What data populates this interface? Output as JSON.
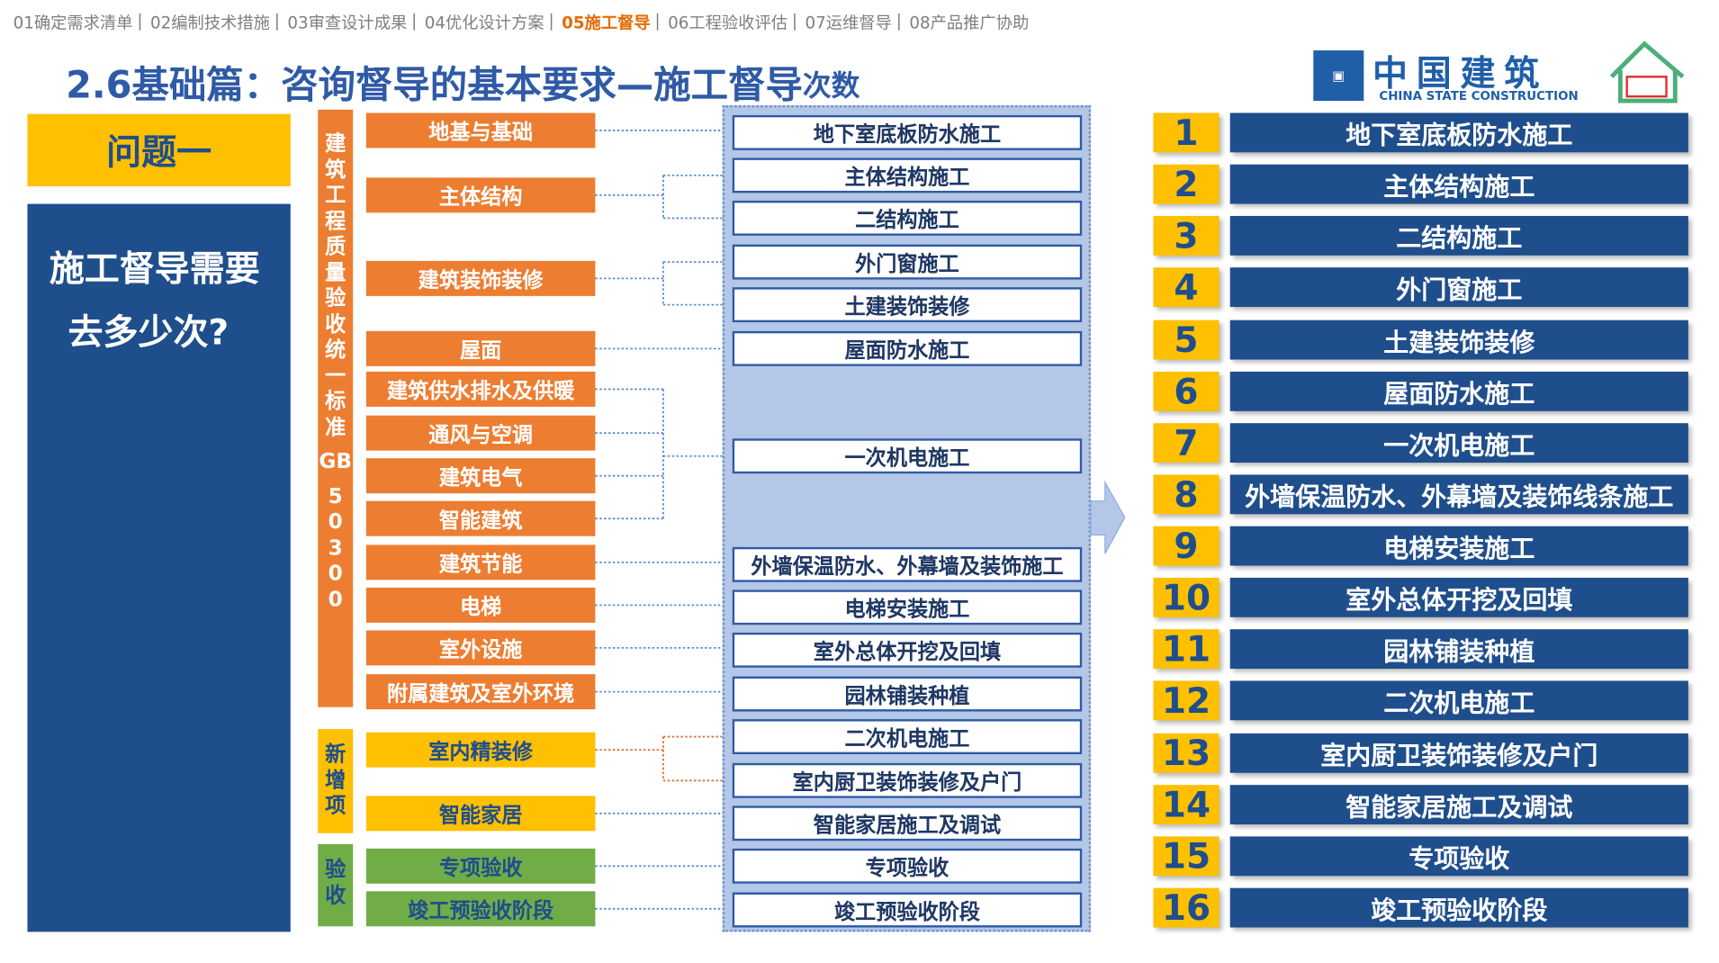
{
  "nav": {
    "items": [
      "01确定需求清单",
      "02编制技术措施",
      "03审查设计成果",
      "04优化设计方案",
      "05施工督导",
      "06工程验收评估",
      "07运维督导",
      "08产品推广协助"
    ],
    "active": 4
  },
  "title": {
    "main": "2.6基础篇：咨询督导的基本要求—施工督导",
    "suffix": "次数"
  },
  "logo": {
    "name": "中国建筑",
    "subtitle": "CHINA STATE CONSTRUCTION"
  },
  "question": {
    "label": "问题一",
    "lines": [
      "施工督导需要",
      "去多少次?"
    ]
  },
  "groups": [
    {
      "label": "建筑工程质量验收统一标准GB50300",
      "items": [
        "地基与基础",
        "主体结构",
        "建筑装饰装修",
        "屋面",
        "建筑供水排水及供暖",
        "通风与空调",
        "建筑电气",
        "智能建筑",
        "建筑节能",
        "电梯",
        "室外设施",
        "附属建筑及室外环境"
      ]
    },
    {
      "label": "新增项",
      "items": [
        "室内精装修",
        "智能家居"
      ]
    },
    {
      "label": "验收",
      "items": [
        "专项验收",
        "竣工预验收阶段"
      ]
    }
  ],
  "stages": [
    "地下室底板防水施工",
    "主体结构施工",
    "二结构施工",
    "外门窗施工",
    "土建装饰装修",
    "屋面防水施工",
    "一次机电施工",
    "外墙保温防水、外幕墙及装饰施工",
    "电梯安装施工",
    "室外总体开挖及回填",
    "园林铺装种植",
    "二次机电施工",
    "室内厨卫装饰装修及户门",
    "智能家居施工及调试",
    "专项验收",
    "竣工预验收阶段"
  ],
  "numbered": [
    {
      "number": 1,
      "text": "地下室底板防水施工"
    },
    {
      "number": 2,
      "text": "主体结构施工"
    },
    {
      "number": 3,
      "text": "二结构施工"
    },
    {
      "number": 4,
      "text": "外门窗施工"
    },
    {
      "number": 5,
      "text": "土建装饰装修"
    },
    {
      "number": 6,
      "text": "屋面防水施工"
    },
    {
      "number": 7,
      "text": "一次机电施工"
    },
    {
      "number": 8,
      "text": "外墙保温防水、外幕墙及装饰线条施工"
    },
    {
      "number": 9,
      "text": "电梯安装施工"
    },
    {
      "number": 10,
      "text": "室外总体开挖及回填"
    },
    {
      "number": 11,
      "text": "园林铺装种植"
    },
    {
      "number": 12,
      "text": "二次机电施工"
    },
    {
      "number": 13,
      "text": "室内厨卫装饰装修及户门"
    },
    {
      "number": 14,
      "text": "智能家居施工及调试"
    },
    {
      "number": 15,
      "text": "专项验收"
    },
    {
      "number": 16,
      "text": "竣工预验收阶段"
    }
  ]
}
